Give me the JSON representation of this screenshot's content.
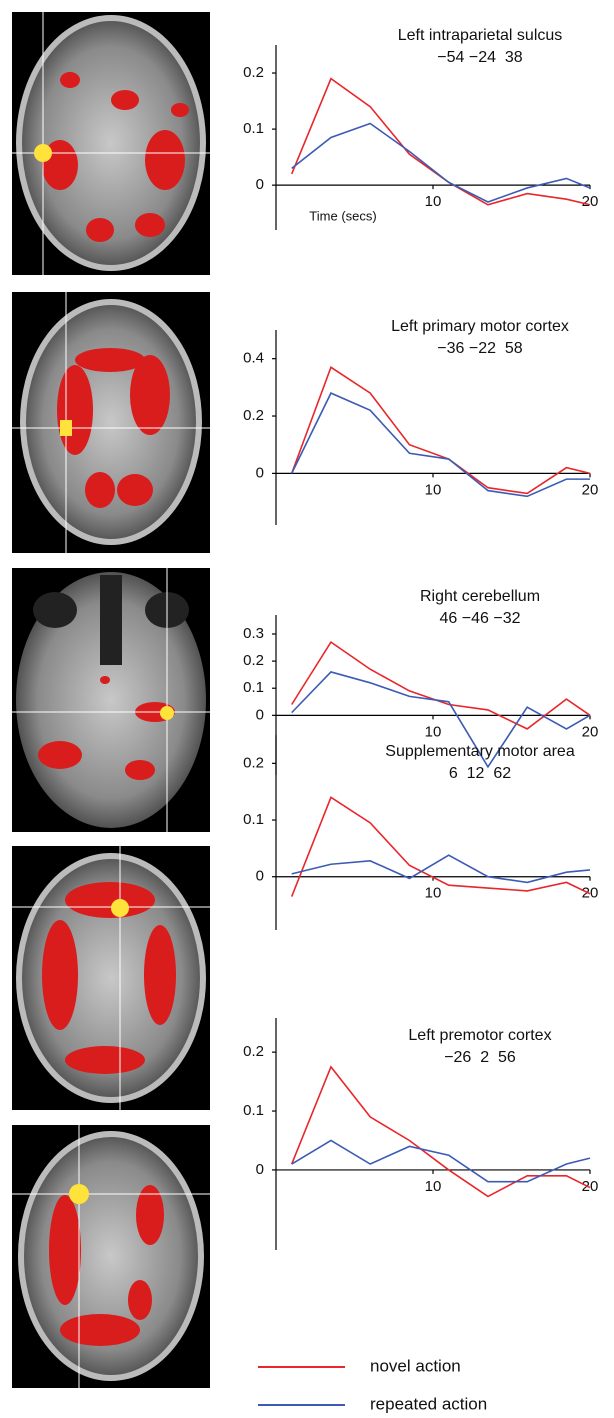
{
  "legend": [
    {
      "name": "novel action",
      "color": "#e8262b"
    },
    {
      "name": "repeated action",
      "color": "#3b5bb5"
    }
  ],
  "chart_data": [
    {
      "type": "line",
      "title": "Left intraparietal sulcus",
      "subtitle": "−54 −24  38",
      "xlabel": "Time (secs)",
      "x": [
        1,
        3.5,
        6,
        8.5,
        11,
        13.5,
        16,
        18.5,
        20
      ],
      "xlim": [
        0,
        20
      ],
      "xticks": [
        10,
        20
      ],
      "ylim": [
        -0.08,
        0.25
      ],
      "yticks": [
        0,
        0.1,
        0.2
      ],
      "series": [
        {
          "values": [
            0.02,
            0.19,
            0.14,
            0.055,
            0.005,
            -0.035,
            -0.015,
            -0.025,
            -0.035
          ]
        },
        {
          "values": [
            0.03,
            0.085,
            0.11,
            0.06,
            0.005,
            -0.03,
            -0.005,
            0.012,
            -0.005
          ]
        }
      ]
    },
    {
      "type": "line",
      "title": "Left primary motor cortex",
      "subtitle": "−36 −22  58",
      "x": [
        1,
        3.5,
        6,
        8.5,
        11,
        13.5,
        16,
        18.5,
        20
      ],
      "xlim": [
        0,
        20
      ],
      "xticks": [
        10,
        20
      ],
      "ylim": [
        -0.18,
        0.5
      ],
      "yticks": [
        0,
        0.2,
        0.4
      ],
      "series": [
        {
          "values": [
            0,
            0.37,
            0.28,
            0.1,
            0.05,
            -0.05,
            -0.07,
            0.02,
            0
          ]
        },
        {
          "values": [
            0,
            0.28,
            0.22,
            0.07,
            0.05,
            -0.06,
            -0.08,
            -0.02,
            -0.02
          ]
        }
      ]
    },
    {
      "type": "line",
      "title": "Right cerebellum",
      "subtitle": "46 −46 −32",
      "x": [
        1,
        3.5,
        6,
        8.5,
        11,
        13.5,
        16,
        18.5,
        20
      ],
      "xlim": [
        0,
        20
      ],
      "xticks": [
        10,
        20
      ],
      "ylim": [
        -0.22,
        0.37
      ],
      "yticks": [
        0,
        0.1,
        0.2,
        0.3
      ],
      "series": [
        {
          "values": [
            0.04,
            0.27,
            0.17,
            0.09,
            0.04,
            0.02,
            -0.05,
            0.06,
            0
          ]
        },
        {
          "values": [
            0.01,
            0.16,
            0.12,
            0.07,
            0.05,
            -0.19,
            0.03,
            -0.05,
            0
          ]
        }
      ]
    },
    {
      "type": "line",
      "title": "Supplementary motor area",
      "subtitle": "6  12  62",
      "x": [
        1,
        3.5,
        6,
        8.5,
        11,
        13.5,
        16,
        18.5,
        20
      ],
      "xlim": [
        0,
        20
      ],
      "xticks": [
        10,
        20
      ],
      "ylim": [
        -0.094,
        0.25
      ],
      "yticks": [
        0,
        0.1,
        0.2
      ],
      "series": [
        {
          "values": [
            -0.035,
            0.14,
            0.095,
            0.02,
            -0.015,
            -0.02,
            -0.025,
            -0.01,
            -0.03
          ]
        },
        {
          "values": [
            0.005,
            0.022,
            0.028,
            -0.003,
            0.038,
            0,
            -0.01,
            0.008,
            0.012
          ]
        }
      ]
    },
    {
      "type": "line",
      "title": "Left premotor cortex",
      "subtitle": "−26  2  56",
      "x": [
        1,
        3.5,
        6,
        8.5,
        11,
        13.5,
        16,
        18.5,
        20
      ],
      "xlim": [
        0,
        20
      ],
      "xticks": [
        10,
        20
      ],
      "ylim": [
        -0.136,
        0.258
      ],
      "yticks": [
        0,
        0.1,
        0.2
      ],
      "series": [
        {
          "values": [
            0.01,
            0.175,
            0.09,
            0.05,
            0,
            -0.045,
            -0.01,
            -0.01,
            -0.03
          ]
        },
        {
          "values": [
            0.01,
            0.05,
            0.01,
            0.04,
            0.025,
            -0.02,
            -0.02,
            0.01,
            0.02
          ]
        }
      ]
    }
  ]
}
